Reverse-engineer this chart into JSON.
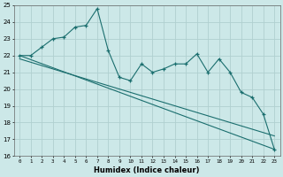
{
  "xlabel": "Humidex (Indice chaleur)",
  "bg_color": "#cce8e8",
  "grid_color": "#b0d0d0",
  "line_color": "#1a6e6e",
  "ylim": [
    16,
    25
  ],
  "xlim": [
    -0.5,
    23.5
  ],
  "yticks": [
    16,
    17,
    18,
    19,
    20,
    21,
    22,
    23,
    24,
    25
  ],
  "xticks": [
    0,
    1,
    2,
    3,
    4,
    5,
    6,
    7,
    8,
    9,
    10,
    11,
    12,
    13,
    14,
    15,
    16,
    17,
    18,
    19,
    20,
    21,
    22,
    23
  ],
  "line1_x": [
    0,
    1,
    2,
    3,
    4,
    5,
    6,
    7,
    8,
    9,
    10,
    11,
    12,
    13,
    14,
    15,
    16,
    17,
    18,
    19,
    20,
    21,
    22,
    23
  ],
  "line1_y": [
    22,
    22,
    22.5,
    23,
    23.1,
    23.7,
    23.8,
    24.8,
    22.3,
    20.7,
    20.5,
    21.5,
    21.0,
    21.2,
    21.5,
    21.5,
    22.1,
    21.0,
    21.8,
    21.0,
    19.8,
    19.5,
    18.5,
    16.4
  ],
  "line2_x": [
    0,
    23
  ],
  "line2_y": [
    22.0,
    16.4
  ],
  "line3_x": [
    0,
    23
  ],
  "line3_y": [
    21.8,
    17.2
  ]
}
